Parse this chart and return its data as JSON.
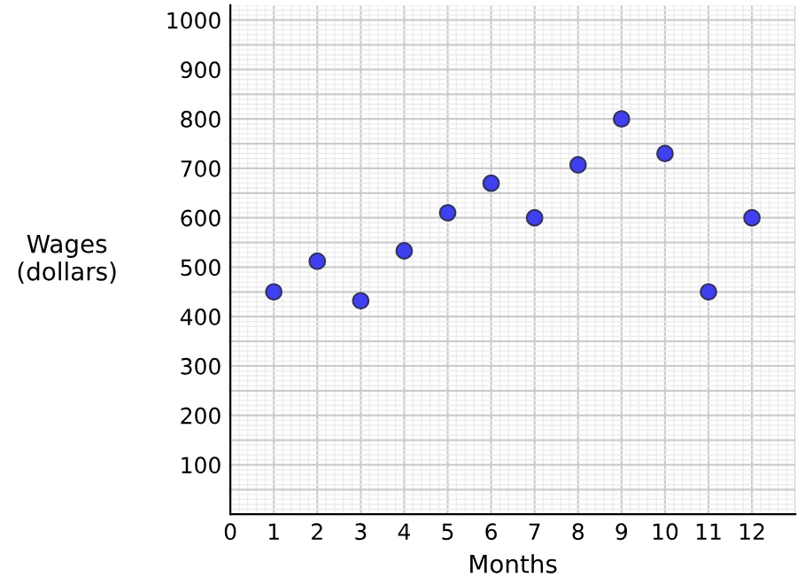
{
  "chart_data": {
    "type": "scatter",
    "xlabel": "Months",
    "ylabel": "Wages\n(dollars)",
    "x": [
      1,
      2,
      3,
      4,
      5,
      6,
      7,
      8,
      9,
      10,
      11,
      12
    ],
    "series": [
      {
        "color": "#4040f0",
        "values": [
          450,
          512,
          432,
          533,
          610,
          670,
          600,
          707,
          800,
          730,
          450,
          600
        ]
      }
    ],
    "xlim": [
      0,
      13
    ],
    "ylim": [
      0,
      1030
    ],
    "xticks": [
      0,
      1,
      2,
      3,
      4,
      5,
      6,
      7,
      8,
      9,
      10,
      11,
      12
    ],
    "yticks": [
      100,
      200,
      300,
      400,
      500,
      600,
      700,
      800,
      900,
      1000
    ],
    "grid": true,
    "marker": "circle",
    "legend": false
  }
}
